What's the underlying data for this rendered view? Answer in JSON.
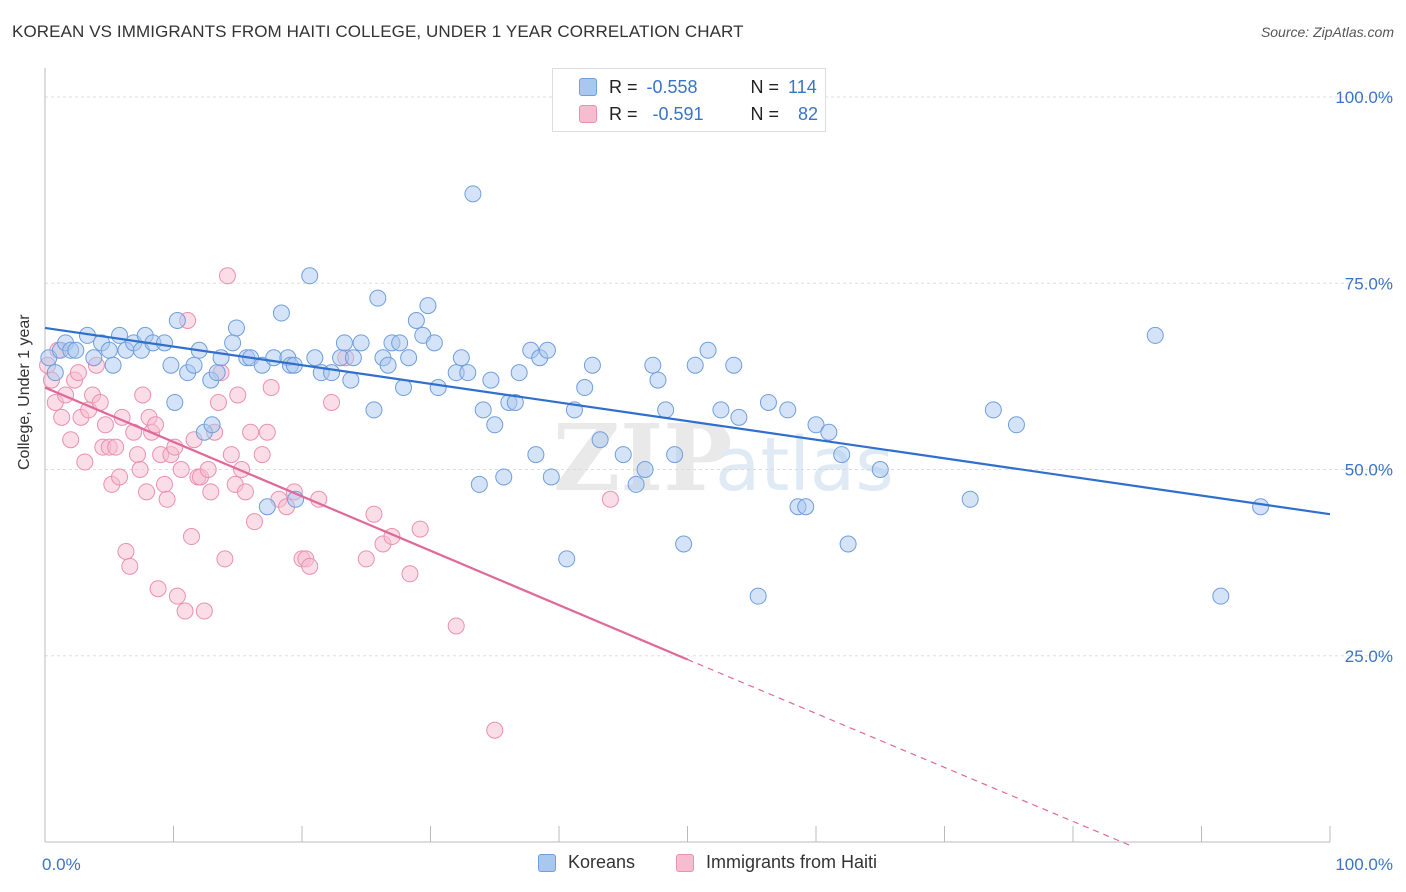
{
  "title": "KOREAN VS IMMIGRANTS FROM HAITI COLLEGE, UNDER 1 YEAR CORRELATION CHART",
  "source": "Source: ZipAtlas.com",
  "watermark": {
    "zip": "ZIP",
    "atlas": "atlas"
  },
  "legend": {
    "korean": {
      "r_label": "R = ",
      "r_value": "-0.558",
      "n_label": "N = ",
      "n_value": "114"
    },
    "haiti": {
      "r_label": "R = ",
      "r_value": "-0.591",
      "n_label": "N = ",
      "n_value": "82"
    }
  },
  "colors": {
    "korean_fill": "#a9c8f0",
    "korean_stroke": "#6f9fdc",
    "korean_line": "#2f6fcd",
    "haiti_fill": "#f7bcd0",
    "haiti_stroke": "#ea90b0",
    "haiti_line": "#e0699a",
    "axis_text": "#3a74c8",
    "grid": "#dddddd"
  },
  "chart_data": {
    "type": "scatter",
    "title": "KOREAN VS IMMIGRANTS FROM HAITI COLLEGE, UNDER 1 YEAR CORRELATION CHART",
    "xlabel": "",
    "ylabel": "College, Under 1 year",
    "xlim": [
      0,
      100
    ],
    "ylim": [
      0,
      105
    ],
    "x_tick_labels": [
      "0.0%",
      "100.0%"
    ],
    "y_ticks": [
      25,
      50,
      75,
      100
    ],
    "y_tick_labels": [
      "25.0%",
      "50.0%",
      "75.0%",
      "100.0%"
    ],
    "grid": "horizontal dashed",
    "legend_position": "bottom-center",
    "series": [
      {
        "name": "Koreans",
        "trend": {
          "x": [
            0,
            100
          ],
          "y": [
            69,
            44
          ]
        },
        "points": [
          [
            0.3,
            65
          ],
          [
            0.8,
            63
          ],
          [
            1.2,
            66
          ],
          [
            1.6,
            67
          ],
          [
            2.0,
            66
          ],
          [
            2.4,
            66
          ],
          [
            3.3,
            68
          ],
          [
            3.8,
            65
          ],
          [
            4.4,
            67
          ],
          [
            5.0,
            66
          ],
          [
            5.3,
            64
          ],
          [
            5.8,
            68
          ],
          [
            6.3,
            66
          ],
          [
            6.9,
            67
          ],
          [
            7.5,
            66
          ],
          [
            7.8,
            68
          ],
          [
            8.4,
            67
          ],
          [
            9.3,
            67
          ],
          [
            9.8,
            64
          ],
          [
            10.1,
            59
          ],
          [
            10.3,
            70
          ],
          [
            11.1,
            63
          ],
          [
            11.6,
            64
          ],
          [
            12.0,
            66
          ],
          [
            12.4,
            55
          ],
          [
            12.9,
            62
          ],
          [
            13.0,
            56
          ],
          [
            13.4,
            63
          ],
          [
            13.7,
            65
          ],
          [
            14.6,
            67
          ],
          [
            14.9,
            69
          ],
          [
            15.7,
            65
          ],
          [
            16.0,
            65
          ],
          [
            16.9,
            64
          ],
          [
            17.3,
            45
          ],
          [
            17.8,
            65
          ],
          [
            18.4,
            71
          ],
          [
            18.9,
            65
          ],
          [
            19.1,
            64
          ],
          [
            19.4,
            64
          ],
          [
            19.5,
            46
          ],
          [
            20.6,
            76
          ],
          [
            21.0,
            65
          ],
          [
            21.5,
            63
          ],
          [
            22.3,
            63
          ],
          [
            23.0,
            65
          ],
          [
            23.3,
            67
          ],
          [
            23.8,
            62
          ],
          [
            24.0,
            65
          ],
          [
            24.6,
            67
          ],
          [
            25.6,
            58
          ],
          [
            25.9,
            73
          ],
          [
            26.3,
            65
          ],
          [
            26.7,
            64
          ],
          [
            27.0,
            67
          ],
          [
            27.6,
            67
          ],
          [
            27.9,
            61
          ],
          [
            28.3,
            65
          ],
          [
            28.9,
            70
          ],
          [
            29.4,
            68
          ],
          [
            29.8,
            72
          ],
          [
            30.3,
            67
          ],
          [
            30.6,
            61
          ],
          [
            32.0,
            63
          ],
          [
            32.4,
            65
          ],
          [
            32.9,
            63
          ],
          [
            33.3,
            87
          ],
          [
            33.8,
            48
          ],
          [
            34.1,
            58
          ],
          [
            34.7,
            62
          ],
          [
            35.0,
            56
          ],
          [
            35.7,
            49
          ],
          [
            36.1,
            59
          ],
          [
            36.6,
            59
          ],
          [
            36.9,
            63
          ],
          [
            37.8,
            66
          ],
          [
            38.2,
            52
          ],
          [
            38.5,
            65
          ],
          [
            39.1,
            66
          ],
          [
            39.4,
            49
          ],
          [
            40.6,
            38
          ],
          [
            41.2,
            58
          ],
          [
            42.0,
            61
          ],
          [
            42.6,
            64
          ],
          [
            43.2,
            54
          ],
          [
            45.0,
            52
          ],
          [
            46.0,
            48
          ],
          [
            46.7,
            50
          ],
          [
            47.3,
            64
          ],
          [
            47.7,
            62
          ],
          [
            48.3,
            58
          ],
          [
            49.0,
            52
          ],
          [
            49.7,
            40
          ],
          [
            50.6,
            64
          ],
          [
            51.6,
            66
          ],
          [
            52.6,
            58
          ],
          [
            53.6,
            64
          ],
          [
            54.0,
            57
          ],
          [
            55.5,
            33
          ],
          [
            56.3,
            59
          ],
          [
            57.8,
            58
          ],
          [
            58.6,
            45
          ],
          [
            59.2,
            45
          ],
          [
            60.0,
            56
          ],
          [
            61.0,
            55
          ],
          [
            62.0,
            52
          ],
          [
            62.5,
            40
          ],
          [
            65.0,
            50
          ],
          [
            72.0,
            46
          ],
          [
            73.8,
            58
          ],
          [
            75.6,
            56
          ],
          [
            86.4,
            68
          ],
          [
            91.5,
            33
          ],
          [
            94.6,
            45
          ]
        ]
      },
      {
        "name": "Immigrants from Haiti",
        "trend": {
          "x": [
            0,
            50
          ],
          "y": [
            61,
            24.5
          ]
        },
        "trend_dashed": {
          "x": [
            50,
            84.5
          ],
          "y": [
            24.5,
            -0.5
          ]
        },
        "points": [
          [
            0.2,
            64
          ],
          [
            0.5,
            62
          ],
          [
            0.8,
            59
          ],
          [
            1.0,
            66
          ],
          [
            1.3,
            57
          ],
          [
            1.6,
            60
          ],
          [
            2.0,
            54
          ],
          [
            2.3,
            62
          ],
          [
            2.6,
            63
          ],
          [
            2.8,
            57
          ],
          [
            3.1,
            51
          ],
          [
            3.4,
            58
          ],
          [
            3.7,
            60
          ],
          [
            4.0,
            64
          ],
          [
            4.3,
            59
          ],
          [
            4.5,
            53
          ],
          [
            4.7,
            56
          ],
          [
            5.0,
            53
          ],
          [
            5.2,
            48
          ],
          [
            5.5,
            53
          ],
          [
            5.8,
            49
          ],
          [
            6.0,
            57
          ],
          [
            6.3,
            39
          ],
          [
            6.6,
            37
          ],
          [
            6.9,
            55
          ],
          [
            7.2,
            52
          ],
          [
            7.4,
            50
          ],
          [
            7.6,
            60
          ],
          [
            7.9,
            47
          ],
          [
            8.1,
            57
          ],
          [
            8.3,
            55
          ],
          [
            8.6,
            56
          ],
          [
            8.8,
            34
          ],
          [
            9.0,
            52
          ],
          [
            9.3,
            48
          ],
          [
            9.5,
            46
          ],
          [
            9.8,
            52
          ],
          [
            10.1,
            53
          ],
          [
            10.3,
            33
          ],
          [
            10.6,
            50
          ],
          [
            10.9,
            31
          ],
          [
            11.1,
            70
          ],
          [
            11.4,
            41
          ],
          [
            11.6,
            54
          ],
          [
            11.9,
            49
          ],
          [
            12.1,
            49
          ],
          [
            12.4,
            31
          ],
          [
            12.7,
            50
          ],
          [
            12.9,
            47
          ],
          [
            13.2,
            55
          ],
          [
            13.5,
            59
          ],
          [
            13.7,
            63
          ],
          [
            14.0,
            38
          ],
          [
            14.2,
            76
          ],
          [
            14.5,
            52
          ],
          [
            14.8,
            48
          ],
          [
            15.0,
            60
          ],
          [
            15.3,
            50
          ],
          [
            15.6,
            47
          ],
          [
            16.0,
            55
          ],
          [
            16.3,
            43
          ],
          [
            16.9,
            52
          ],
          [
            17.3,
            55
          ],
          [
            17.6,
            61
          ],
          [
            18.2,
            46
          ],
          [
            18.8,
            45
          ],
          [
            19.4,
            47
          ],
          [
            20.0,
            38
          ],
          [
            20.3,
            38
          ],
          [
            20.6,
            37
          ],
          [
            21.3,
            46
          ],
          [
            22.3,
            59
          ],
          [
            23.4,
            65
          ],
          [
            25.0,
            38
          ],
          [
            25.6,
            44
          ],
          [
            26.3,
            40
          ],
          [
            27.0,
            41
          ],
          [
            28.4,
            36
          ],
          [
            29.2,
            42
          ],
          [
            32.0,
            29
          ],
          [
            35.0,
            15
          ],
          [
            44.0,
            46
          ]
        ]
      }
    ]
  },
  "bottom_legend": {
    "korean": "Koreans",
    "haiti": "Immigrants from Haiti"
  }
}
